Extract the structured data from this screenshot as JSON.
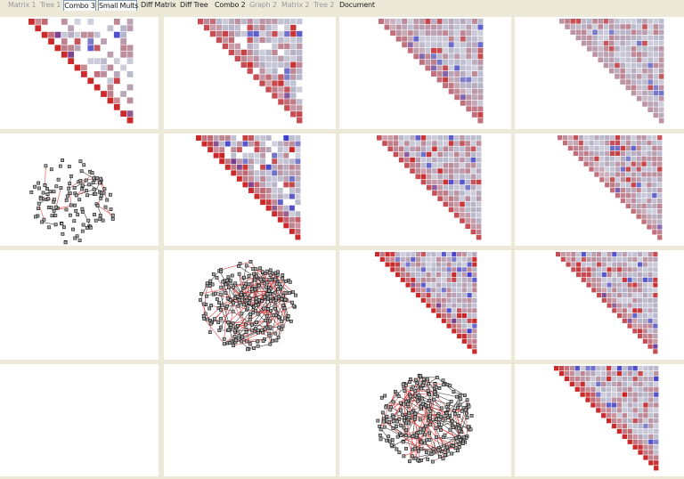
{
  "tabs": [
    {
      "label": "Matrix 1",
      "state": "inactive"
    },
    {
      "label": "Tree 1",
      "state": "inactive"
    },
    {
      "label": "Combo 3",
      "state": "boxed"
    },
    {
      "label": "Small Mults",
      "state": "selected"
    },
    {
      "label": "Diff Matrix",
      "state": "active"
    },
    {
      "label": "Diff Tree",
      "state": "active"
    },
    {
      "label": "Combo 2",
      "state": "active"
    },
    {
      "label": "Graph 2",
      "state": "inactive"
    },
    {
      "label": "Matrix 2",
      "state": "inactive"
    },
    {
      "label": "Tree 2",
      "state": "inactive"
    },
    {
      "label": "Document",
      "state": "active"
    }
  ],
  "grid": {
    "rows": 4,
    "cols": 4,
    "cells": [
      [
        "matrix",
        "matrix",
        "matrix",
        "matrix"
      ],
      [
        "graph",
        "matrix",
        "matrix",
        "matrix"
      ],
      [
        "empty",
        "graph",
        "matrix",
        "matrix"
      ],
      [
        "empty",
        "empty",
        "graph",
        "matrix"
      ]
    ]
  },
  "colors": {
    "background": "#ece9d8",
    "panel": "#ffffff",
    "matrix_red": "#cc2222",
    "matrix_blue": "#3333cc",
    "matrix_neutral": "#b7b7cb",
    "node_fill": "#a8a8a8",
    "node_stroke": "#111111",
    "edge_red": "#e64646",
    "edge_dark": "#404040"
  }
}
